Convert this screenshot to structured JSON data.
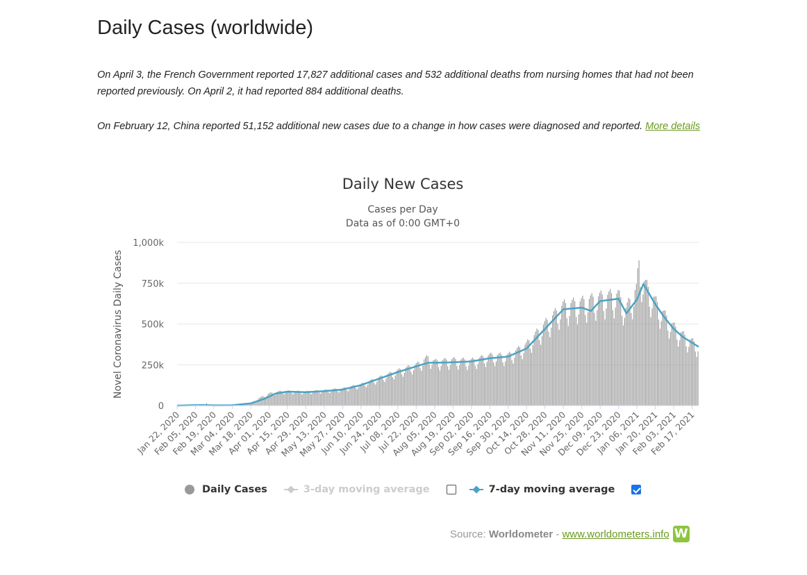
{
  "page": {
    "title": "Daily Cases (worldwide)",
    "note1": "On April 3, the French Government reported 17,827 additional cases and 532 additional deaths from nursing homes that had not been reported previously. On April 2, it had reported 884 additional deaths.",
    "note2_text": "On February 12, China reported 51,152 additional new cases due to a change in how cases were diagnosed and reported. ",
    "note2_link": "More details"
  },
  "legend": {
    "daily": "Daily Cases",
    "ma3": "3-day moving average",
    "ma7": "7-day moving average",
    "ma3_checked": false,
    "ma7_checked": true
  },
  "source": {
    "prefix": "Source: ",
    "name": "Worldometer",
    "sep": " - ",
    "url": "www.worldometers.info",
    "logo": "W"
  },
  "colors": {
    "bars": "#999999",
    "ma7": "#4aa3c4",
    "ma3_disabled": "#cccccc",
    "grid": "#e6e6e6",
    "link": "#6a9a1f",
    "logo": "#8cc63f"
  },
  "chart_data": {
    "type": "bar",
    "title": "Daily New Cases",
    "subtitle_lines": [
      "Cases per Day",
      "Data as of 0:00 GMT+0"
    ],
    "ylabel": "Novel Coronavirus Daily Cases",
    "ylim": [
      0,
      1000000
    ],
    "yticks": [
      0,
      250000,
      500000,
      750000,
      1000000
    ],
    "ytick_labels": [
      "0",
      "250k",
      "500k",
      "750k",
      "1,000k"
    ],
    "x_start": "2020-01-22",
    "x_end": "2021-02-22",
    "xtick_labels": [
      "Jan 22, 2020",
      "Feb 05, 2020",
      "Feb 19, 2020",
      "Mar 04, 2020",
      "Mar 18, 2020",
      "Apr 01, 2020",
      "Apr 15, 2020",
      "Apr 29, 2020",
      "May 13, 2020",
      "May 27, 2020",
      "Jun 10, 2020",
      "Jun 24, 2020",
      "Jul 08, 2020",
      "Jul 22, 2020",
      "Aug 05, 2020",
      "Aug 19, 2020",
      "Sep 02, 2020",
      "Sep 16, 2020",
      "Sep 30, 2020",
      "Oct 14, 2020",
      "Oct 28, 2020",
      "Nov 11, 2020",
      "Nov 25, 2020",
      "Dec 09, 2020",
      "Dec 23, 2020",
      "Jan 06, 2021",
      "Jan 20, 2021",
      "Feb 03, 2021",
      "Feb 17, 2021"
    ],
    "series": [
      {
        "name": "Daily Cases",
        "kind": "bar",
        "points": [
          [
            "2020-01-22",
            500
          ],
          [
            "2020-02-01",
            2500
          ],
          [
            "2020-02-12",
            3000
          ],
          [
            "2020-02-13",
            15000
          ],
          [
            "2020-02-14",
            4000
          ],
          [
            "2020-02-19",
            1000
          ],
          [
            "2020-03-04",
            2000
          ],
          [
            "2020-03-11",
            8000
          ],
          [
            "2020-03-18",
            17000
          ],
          [
            "2020-03-25",
            48000
          ],
          [
            "2020-04-01",
            72000
          ],
          [
            "2020-04-08",
            82000
          ],
          [
            "2020-04-15",
            85000
          ],
          [
            "2020-04-29",
            82000
          ],
          [
            "2020-05-13",
            90000
          ],
          [
            "2020-05-27",
            100000
          ],
          [
            "2020-06-10",
            125000
          ],
          [
            "2020-06-24",
            165000
          ],
          [
            "2020-07-08",
            205000
          ],
          [
            "2020-07-22",
            240000
          ],
          [
            "2020-07-31",
            285000
          ],
          [
            "2020-08-05",
            260000
          ],
          [
            "2020-08-19",
            270000
          ],
          [
            "2020-09-02",
            265000
          ],
          [
            "2020-09-16",
            295000
          ],
          [
            "2020-09-30",
            295000
          ],
          [
            "2020-10-14",
            360000
          ],
          [
            "2020-10-28",
            480000
          ],
          [
            "2020-11-11",
            590000
          ],
          [
            "2020-11-25",
            610000
          ],
          [
            "2020-12-09",
            640000
          ],
          [
            "2020-12-23",
            655000
          ],
          [
            "2020-12-29",
            570000
          ],
          [
            "2021-01-06",
            690000
          ],
          [
            "2021-01-08",
            840000
          ],
          [
            "2021-01-11",
            740000
          ],
          [
            "2021-01-20",
            620000
          ],
          [
            "2021-01-27",
            540000
          ],
          [
            "2021-02-03",
            470000
          ],
          [
            "2021-02-10",
            420000
          ],
          [
            "2021-02-17",
            380000
          ],
          [
            "2021-02-22",
            360000
          ]
        ]
      },
      {
        "name": "7-day moving average",
        "kind": "line",
        "points": [
          [
            "2020-01-22",
            0
          ],
          [
            "2020-02-01",
            2000
          ],
          [
            "2020-02-10",
            3000
          ],
          [
            "2020-02-19",
            1500
          ],
          [
            "2020-03-04",
            2000
          ],
          [
            "2020-03-18",
            13000
          ],
          [
            "2020-03-28",
            40000
          ],
          [
            "2020-04-06",
            74000
          ],
          [
            "2020-04-15",
            85000
          ],
          [
            "2020-04-29",
            82000
          ],
          [
            "2020-05-13",
            88000
          ],
          [
            "2020-05-27",
            98000
          ],
          [
            "2020-06-10",
            125000
          ],
          [
            "2020-06-24",
            165000
          ],
          [
            "2020-07-08",
            205000
          ],
          [
            "2020-07-22",
            240000
          ],
          [
            "2020-07-31",
            262000
          ],
          [
            "2020-08-05",
            262000
          ],
          [
            "2020-08-19",
            265000
          ],
          [
            "2020-09-02",
            270000
          ],
          [
            "2020-09-16",
            290000
          ],
          [
            "2020-09-30",
            300000
          ],
          [
            "2020-10-14",
            350000
          ],
          [
            "2020-10-28",
            470000
          ],
          [
            "2020-11-11",
            590000
          ],
          [
            "2020-11-25",
            600000
          ],
          [
            "2020-12-02",
            580000
          ],
          [
            "2020-12-09",
            640000
          ],
          [
            "2020-12-23",
            655000
          ],
          [
            "2020-12-29",
            565000
          ],
          [
            "2021-01-06",
            650000
          ],
          [
            "2021-01-11",
            745000
          ],
          [
            "2021-01-20",
            620000
          ],
          [
            "2021-01-27",
            540000
          ],
          [
            "2021-02-03",
            470000
          ],
          [
            "2021-02-10",
            420000
          ],
          [
            "2021-02-17",
            385000
          ],
          [
            "2021-02-22",
            360000
          ]
        ]
      }
    ]
  }
}
